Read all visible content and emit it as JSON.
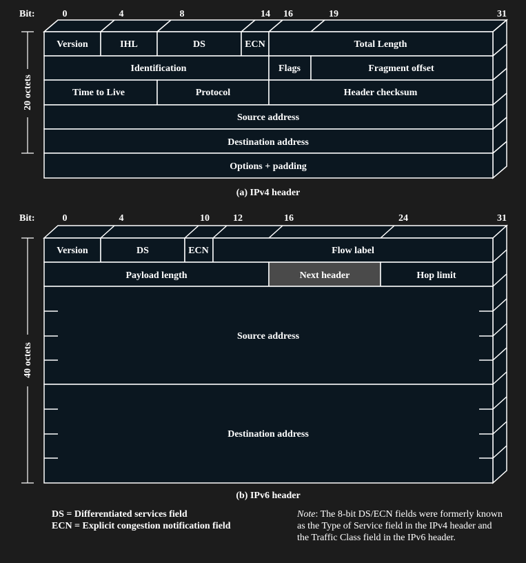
{
  "colors": {
    "background": "#1c1c1c",
    "cell_fill": "#0b1720",
    "highlight_fill": "#4a4a4a",
    "line": "#ffffff"
  },
  "ipv4": {
    "bit_label": "Bit:",
    "bits": [
      "0",
      "4",
      "8",
      "14",
      "16",
      "19",
      "31"
    ],
    "rows": [
      [
        "Version",
        "IHL",
        "DS",
        "ECN",
        "Total Length"
      ],
      [
        "Identification",
        "Flags",
        "Fragment offset"
      ],
      [
        "Time to Live",
        "Protocol",
        "Header checksum"
      ],
      [
        "Source address"
      ],
      [
        "Destination address"
      ],
      [
        "Options + padding"
      ]
    ],
    "size_label": "20 octets",
    "caption": "(a) IPv4 header"
  },
  "ipv6": {
    "bit_label": "Bit:",
    "bits": [
      "0",
      "4",
      "10",
      "12",
      "16",
      "24",
      "31"
    ],
    "rows": [
      [
        "Version",
        "DS",
        "ECN",
        "Flow label"
      ],
      [
        "Payload length",
        "Next header",
        "Hop limit"
      ],
      [
        "Source address"
      ],
      [
        "Destination address"
      ]
    ],
    "highlighted_field": "Next header",
    "size_label": "40 octets",
    "caption": "(b) IPv6 header"
  },
  "legend": {
    "ds": "DS = Differentiated services field",
    "ecn": "ECN = Explicit congestion notification field",
    "note_label": "Note",
    "note_text": ": The 8-bit DS/ECN fields were formerly known as the Type of Service field in the IPv4 header and the Traffic Class field in the IPv6 header."
  }
}
